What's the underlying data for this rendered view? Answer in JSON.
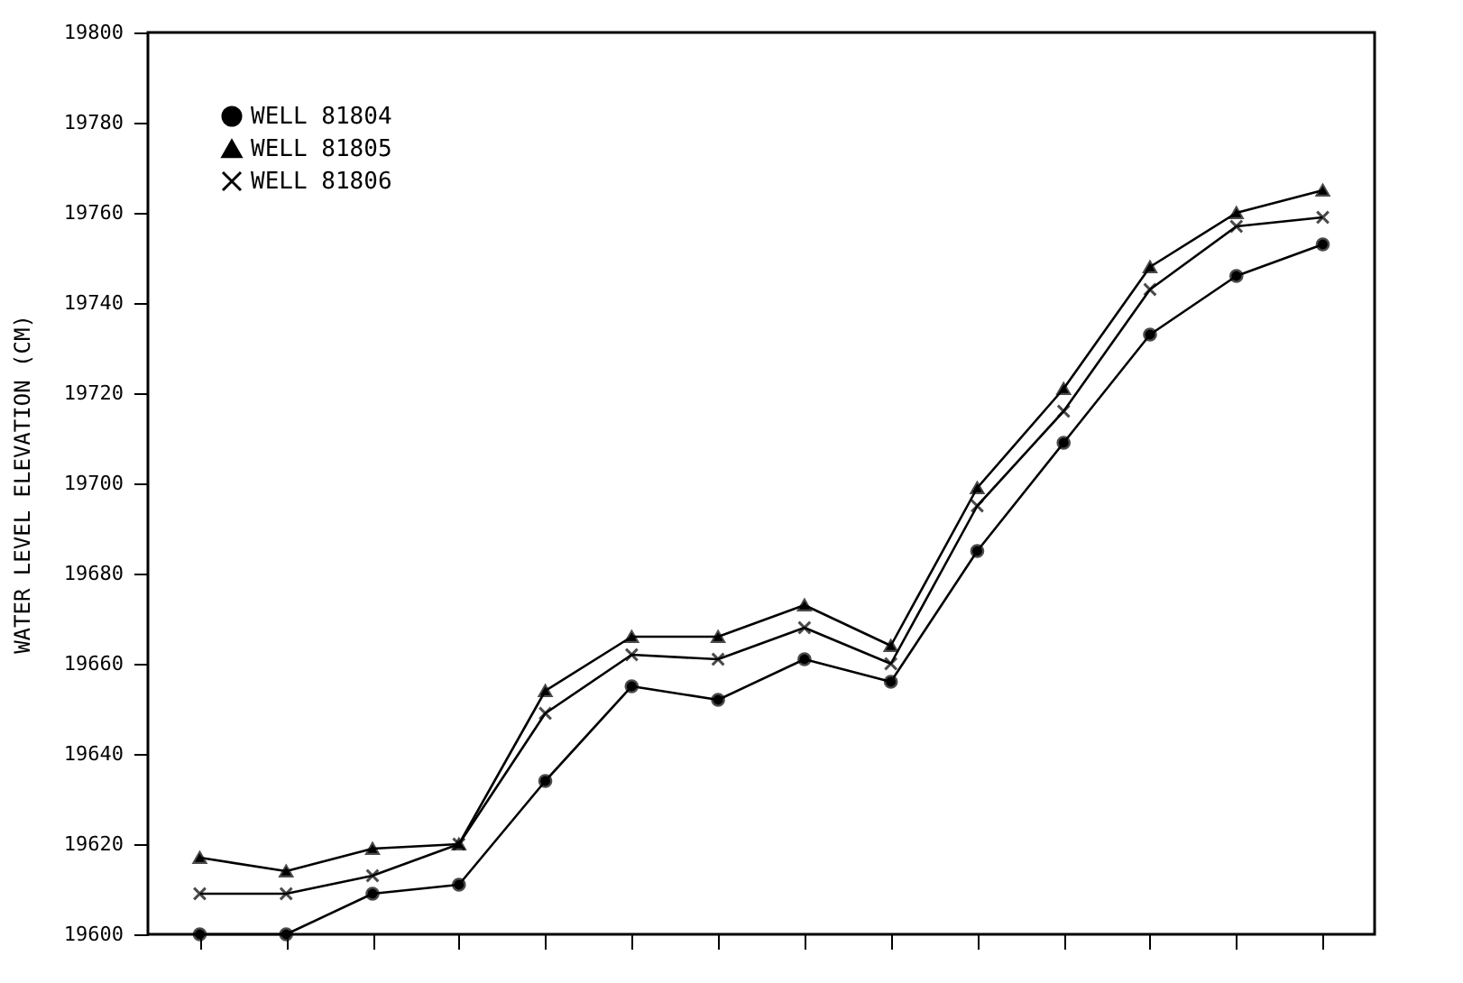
{
  "chart_data": {
    "type": "line",
    "ylabel": "WATER LEVEL ELEVATION (CM)",
    "categories": [
      null,
      null,
      null,
      null,
      null,
      null,
      null,
      null,
      null,
      null,
      null,
      null,
      null,
      null
    ],
    "ylim": [
      19600,
      19800
    ],
    "yticks": [
      19600,
      19620,
      19640,
      19660,
      19680,
      19700,
      19720,
      19740,
      19760,
      19780,
      19800
    ],
    "tick_labels": "y",
    "grid": false,
    "legend": "top left",
    "line_style": "solid",
    "series": [
      {
        "name": "WELL 81804",
        "color": "#000000",
        "marker": "circle",
        "values": [
          19600,
          19600,
          19609,
          19611,
          19634,
          19655,
          19652,
          19661,
          19656,
          19685,
          19709,
          19733,
          19746,
          19753
        ]
      },
      {
        "name": "WELL 81805",
        "color": "#000000",
        "marker": "triangle",
        "values": [
          19617,
          19614,
          19619,
          19620,
          19654,
          19666,
          19666,
          19673,
          19664,
          19699,
          19721,
          19748,
          19760,
          19765
        ]
      },
      {
        "name": "WELL 81806",
        "color": "#000000",
        "marker": "cross",
        "values": [
          19609,
          19609,
          19613,
          19620,
          19649,
          19662,
          19661,
          19668,
          19660,
          19695,
          19716,
          19743,
          19757,
          19759
        ]
      }
    ]
  }
}
